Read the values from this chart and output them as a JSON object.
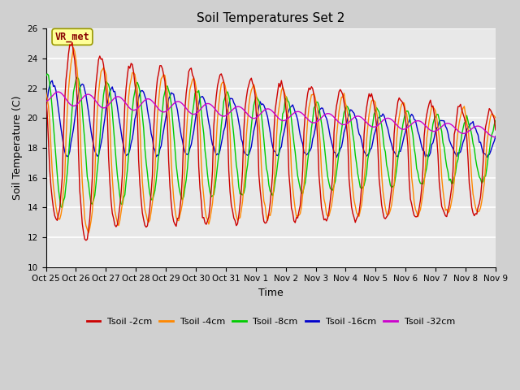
{
  "title": "Soil Temperatures Set 2",
  "xlabel": "Time",
  "ylabel": "Soil Temperature (C)",
  "ylim": [
    10,
    26
  ],
  "series_colors": [
    "#cc0000",
    "#ff8800",
    "#00cc00",
    "#0000cc",
    "#cc00cc"
  ],
  "series_labels": [
    "Tsoil -2cm",
    "Tsoil -4cm",
    "Tsoil -8cm",
    "Tsoil -16cm",
    "Tsoil -32cm"
  ],
  "annotation_text": "VR_met",
  "annotation_box_color": "#ffff99",
  "annotation_border_color": "#999900",
  "tick_labels": [
    "Oct 25",
    "Oct 26",
    "Oct 27",
    "Oct 28",
    "Oct 29",
    "Oct 30",
    "Oct 31",
    "Nov 1",
    "Nov 2",
    "Nov 3",
    "Nov 4",
    "Nov 5",
    "Nov 6",
    "Nov 7",
    "Nov 8",
    "Nov 9"
  ],
  "yticks": [
    10,
    12,
    14,
    16,
    18,
    20,
    22,
    24,
    26
  ],
  "title_fontsize": 11,
  "label_fontsize": 9,
  "tick_fontsize": 7.5,
  "legend_fontsize": 8
}
